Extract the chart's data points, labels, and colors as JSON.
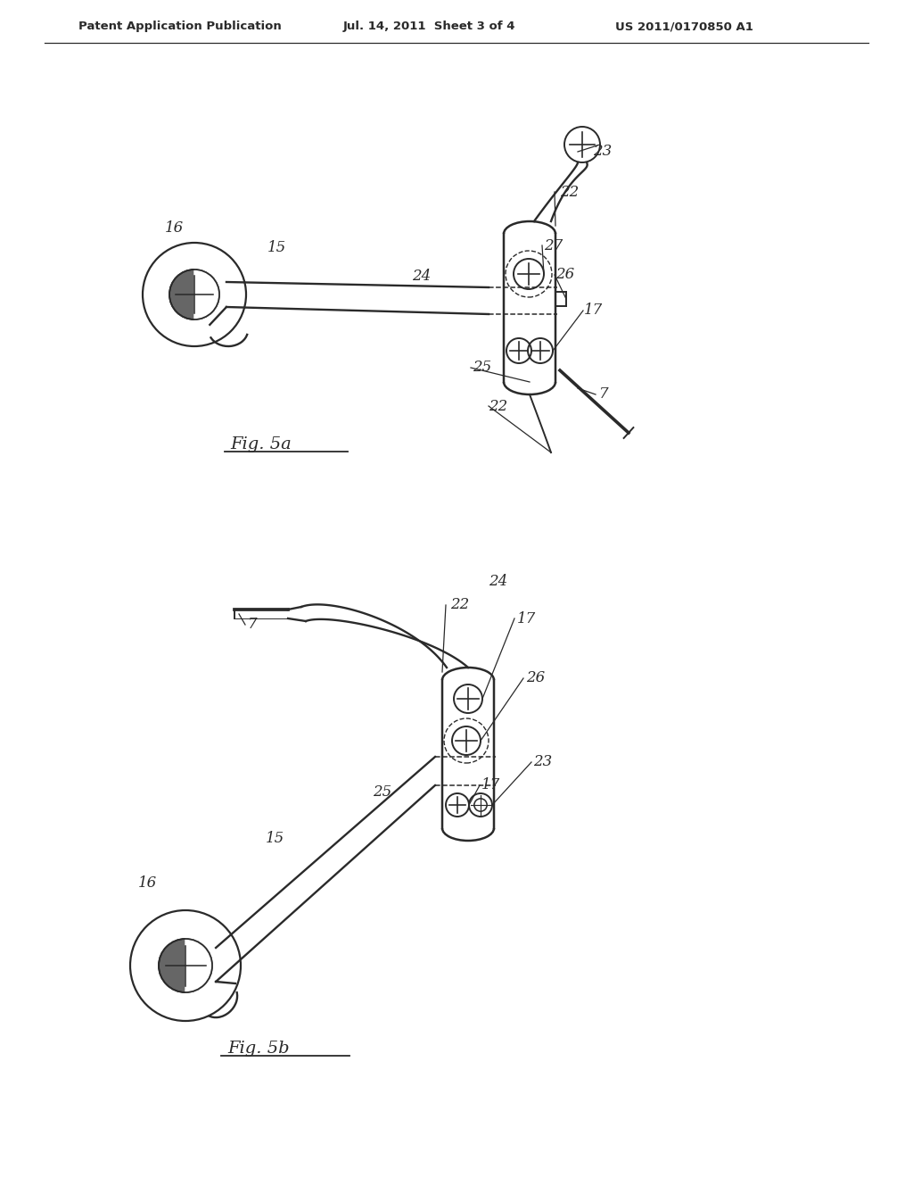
{
  "bg_color": "#ffffff",
  "line_color": "#2a2a2a",
  "header_left": "Patent Application Publication",
  "header_center": "Jul. 14, 2011  Sheet 3 of 4",
  "header_right": "US 2011/0170850 A1",
  "fig5a_label": "Fig. 5a",
  "fig5b_label": "Fig. 5b"
}
